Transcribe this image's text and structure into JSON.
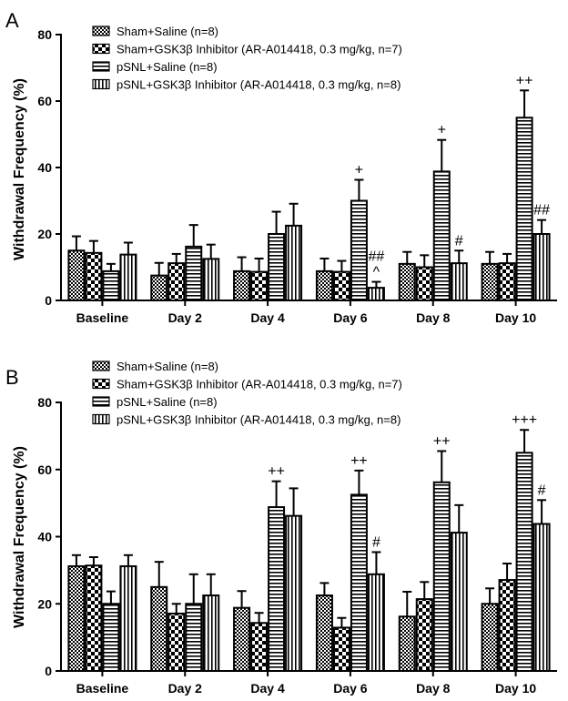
{
  "figure": {
    "legend": [
      {
        "name": "Sham+Saline (n=8)",
        "pattern": "checker"
      },
      {
        "name": "Sham+GSK3β Inhibitor (AR-A014418, 0.3 mg/kg, n=7)",
        "pattern": "bigchecker"
      },
      {
        "name": "pSNL+Saline (n=8)",
        "pattern": "hlines"
      },
      {
        "name": "pSNL+GSK3β Inhibitor (AR-A014418, 0.3 mg/kg, n=8)",
        "pattern": "vlines"
      }
    ]
  },
  "chart_data": [
    {
      "type": "bar",
      "panel": "A",
      "ylabel": "Withdrawal Frequency (%)",
      "xlabel": "",
      "ylim": [
        0,
        80
      ],
      "yticks": [
        0,
        20,
        40,
        60,
        80
      ],
      "categories": [
        "Baseline",
        "Day 2",
        "Day 4",
        "Day 6",
        "Day 8",
        "Day 10"
      ],
      "series": [
        {
          "name": "Sham+Saline (n=8)",
          "values": [
            15,
            7.5,
            8.8,
            8.8,
            11,
            11
          ],
          "errors": [
            4.3,
            3.8,
            4.2,
            3.8,
            3.6,
            3.6
          ]
        },
        {
          "name": "Sham+GSK3β Inhibitor (AR-A014418, 0.3 mg/kg, n=7)",
          "values": [
            14.3,
            11.2,
            8.6,
            8.6,
            10,
            11.2
          ],
          "errors": [
            3.6,
            2.8,
            4,
            3.3,
            3.6,
            2.8
          ]
        },
        {
          "name": "pSNL+Saline (n=8)",
          "values": [
            8.8,
            16.2,
            20,
            30,
            38.8,
            55
          ],
          "errors": [
            2.2,
            6.5,
            6.7,
            6.3,
            9.5,
            8.2
          ]
        },
        {
          "name": "pSNL+GSK3β Inhibitor (AR-A014418, 0.3 mg/kg, n=8)",
          "values": [
            13.8,
            12.5,
            22.5,
            3.8,
            11.2,
            20
          ],
          "errors": [
            3.6,
            4.3,
            6.6,
            1.8,
            3.8,
            4.2
          ]
        }
      ],
      "annotations": [
        {
          "category": "Day 6",
          "series": 2,
          "text": "+"
        },
        {
          "category": "Day 6",
          "series": 3,
          "text": "^"
        },
        {
          "category": "Day 6",
          "series": 3,
          "text": "##"
        },
        {
          "category": "Day 8",
          "series": 2,
          "text": "+"
        },
        {
          "category": "Day 8",
          "series": 3,
          "text": "#"
        },
        {
          "category": "Day 10",
          "series": 2,
          "text": "++"
        },
        {
          "category": "Day 10",
          "series": 3,
          "text": "##"
        }
      ]
    },
    {
      "type": "bar",
      "panel": "B",
      "ylabel": "Withdrawal Frequency (%)",
      "xlabel": "",
      "ylim": [
        0,
        80
      ],
      "yticks": [
        0,
        20,
        40,
        60,
        80
      ],
      "categories": [
        "Baseline",
        "Day 2",
        "Day 4",
        "Day 6",
        "Day 8",
        "Day 10"
      ],
      "series": [
        {
          "name": "Sham+Saline (n=8)",
          "values": [
            31.2,
            25,
            18.8,
            22.5,
            16.2,
            20
          ],
          "errors": [
            3.3,
            7.5,
            5,
            3.7,
            7.4,
            4.6
          ]
        },
        {
          "name": "Sham+GSK3β Inhibitor (AR-A014418, 0.3 mg/kg, n=7)",
          "values": [
            31.4,
            17.1,
            14.3,
            12.9,
            21.4,
            27.1
          ],
          "errors": [
            2.5,
            2.9,
            3,
            2.9,
            5.1,
            4.9
          ]
        },
        {
          "name": "pSNL+Saline (n=8)",
          "values": [
            20,
            20,
            48.8,
            52.5,
            56.2,
            65
          ],
          "errors": [
            3.7,
            8.8,
            7.7,
            7.2,
            9.3,
            6.8
          ]
        },
        {
          "name": "pSNL+GSK3β Inhibitor (AR-A014418, 0.3 mg/kg, n=8)",
          "values": [
            31.2,
            22.5,
            46.2,
            28.8,
            41.2,
            43.8
          ],
          "errors": [
            3.3,
            6.3,
            8.2,
            6.6,
            8.2,
            7.1
          ]
        }
      ],
      "annotations": [
        {
          "category": "Day 4",
          "series": 2,
          "text": "++"
        },
        {
          "category": "Day 6",
          "series": 2,
          "text": "++"
        },
        {
          "category": "Day 6",
          "series": 3,
          "text": "#"
        },
        {
          "category": "Day 8",
          "series": 2,
          "text": "++"
        },
        {
          "category": "Day 10",
          "series": 2,
          "text": "+++"
        },
        {
          "category": "Day 10",
          "series": 3,
          "text": "#"
        }
      ]
    }
  ]
}
